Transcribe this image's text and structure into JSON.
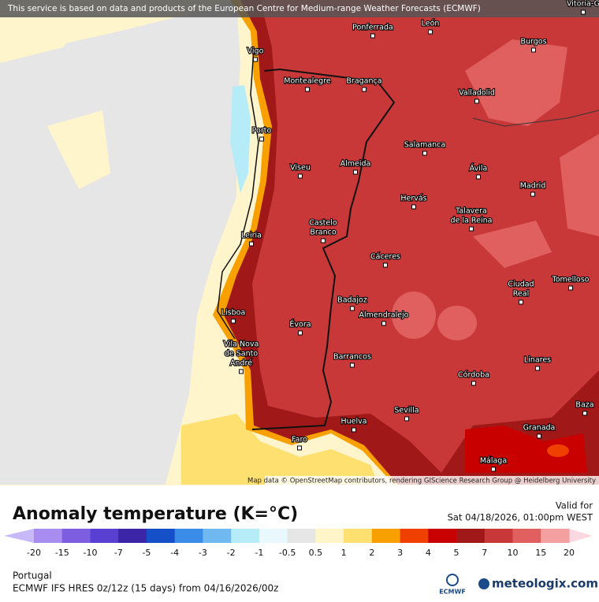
{
  "banner": "This service is based on data and products of the European Centre for Medium-range Weather Forecasts (ECMWF)",
  "attribution": "Map data © OpenStreetMap contributors, rendering GIScience Research Group @ Heidelberg University",
  "cities": [
    [
      "Vitoria-G"
    ],
    [
      "Ponferrada"
    ],
    [
      "León"
    ],
    [
      "Vigo"
    ],
    [
      "Burgos"
    ],
    [
      "Montealegre"
    ],
    [
      "Bragança"
    ],
    [
      "Valladolid"
    ],
    [
      "Porto"
    ],
    [
      "Salamanca"
    ],
    [
      "Viseu"
    ],
    [
      "Almeida"
    ],
    [
      "Ávila"
    ],
    [
      "Madrid"
    ],
    [
      "Hervás"
    ],
    [
      "Talavera",
      "de la Reina"
    ],
    [
      "Castelo",
      "Branco"
    ],
    [
      "Leiria"
    ],
    [
      "Cáceres"
    ],
    [
      "Ciudad",
      "Real"
    ],
    [
      "Tomelloso"
    ],
    [
      "Badajoz"
    ],
    [
      "Lisboa"
    ],
    [
      "Almendralejo"
    ],
    [
      "Évora"
    ],
    [
      "Vila Nova",
      "de Santo",
      "André"
    ],
    [
      "Barrancos"
    ],
    [
      "Linares"
    ],
    [
      "Córdoba"
    ],
    [
      "Sevilla"
    ],
    [
      "Baza"
    ],
    [
      "Granada"
    ],
    [
      "Huelva"
    ],
    [
      "Faro"
    ],
    [
      "Málaga"
    ]
  ],
  "legend": {
    "title": "Anomaly temperature (K=°C)",
    "valid_label": "Valid for",
    "valid_time": "Sat 04/18/2026, 01:00pm WEST",
    "ticks": [
      "-20",
      "-15",
      "-10",
      "-7",
      "-5",
      "-4",
      "-3",
      "-2",
      "-1",
      "-0.5",
      "0.5",
      "1",
      "2",
      "3",
      "4",
      "5",
      "7",
      "10",
      "15",
      "20"
    ],
    "colors": [
      "#a98cf0",
      "#7e5ee0",
      "#5a40d0",
      "#3d25a8",
      "#1550c8",
      "#3a8ce8",
      "#70b8f0",
      "#b5ecf8",
      "#e8f8fc",
      "#e6e6e6",
      "#fff5c8",
      "#fde070",
      "#f8a000",
      "#f04000",
      "#c80000",
      "#a01818",
      "#c83838",
      "#e06060",
      "#f4a0a0"
    ],
    "low_color": "#c8b8f8",
    "high_color": "#fbd8e0"
  },
  "footer": {
    "region": "Portugal",
    "model": "ECMWF IFS HRES 0z/12z (15 days) from  04/16/2026/00z",
    "ecmwf": "ECMWF",
    "brand": "meteologix.com"
  }
}
